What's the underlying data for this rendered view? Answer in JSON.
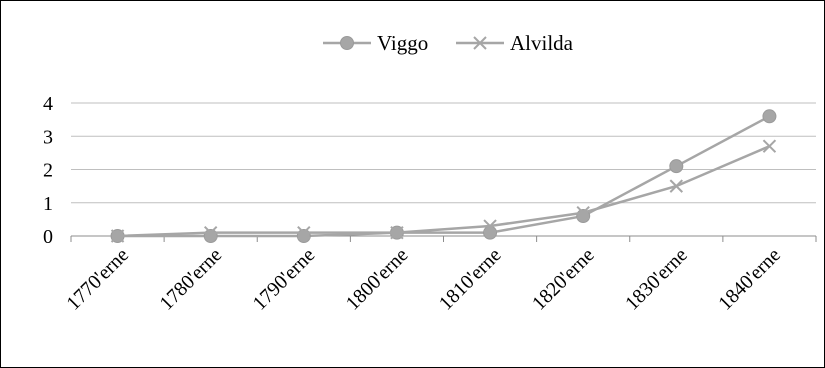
{
  "chart_data": {
    "type": "line",
    "title": "",
    "xlabel": "",
    "ylabel": "",
    "categories": [
      "1770'erne",
      "1780'erne",
      "1790'erne",
      "1800'erne",
      "1810'erne",
      "1820'erne",
      "1830'erne",
      "1840'erne"
    ],
    "ylim": [
      0,
      4
    ],
    "yticks": [
      0,
      1,
      2,
      3,
      4
    ],
    "grid": true,
    "legend": "top-center",
    "series": [
      {
        "name": "Viggo",
        "marker": "circle",
        "color": "#a6a6a6",
        "values": [
          0,
          0,
          0,
          0.1,
          0.1,
          0.6,
          2.1,
          3.6
        ]
      },
      {
        "name": "Alvilda",
        "marker": "x",
        "color": "#a6a6a6",
        "values": [
          0,
          0.1,
          0.1,
          0.1,
          0.3,
          0.7,
          1.5,
          2.7
        ]
      }
    ]
  }
}
